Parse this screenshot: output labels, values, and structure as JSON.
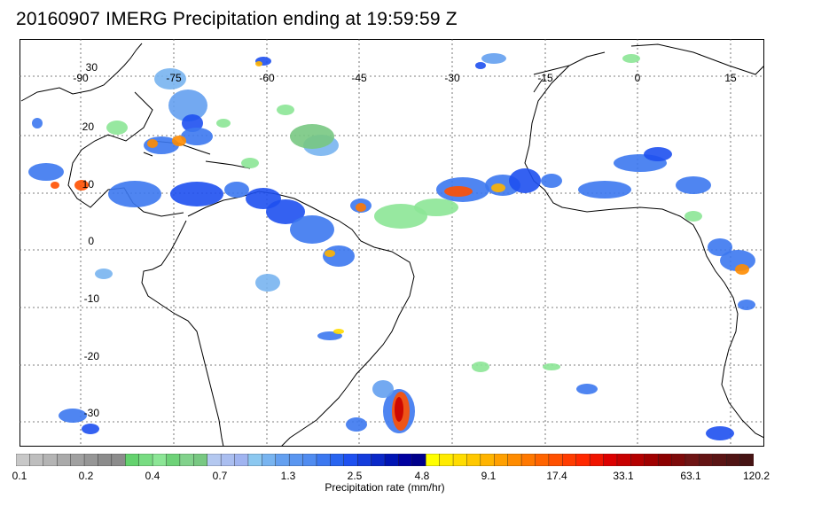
{
  "title": "20160907 IMERG Precipitation ending at 19:59:59 Z",
  "map": {
    "lon_labels": [
      "-90",
      "-75",
      "-60",
      "-45",
      "-30",
      "-15",
      "0",
      "15"
    ],
    "lat_labels": [
      "30",
      "20",
      "10",
      "0",
      "-10",
      "-20",
      "-30"
    ]
  },
  "colorbar": {
    "title": "Precipitation rate (mm/hr)",
    "tick_labels": [
      "0.1",
      "0.2",
      "0.4",
      "0.7",
      "1.3",
      "2.5",
      "4.8",
      "9.1",
      "17.4",
      "33.1",
      "63.1",
      "120.2"
    ],
    "colors": [
      "#c8c8c8",
      "#bebebe",
      "#b4b4b4",
      "#aaaaaa",
      "#a0a0a0",
      "#969696",
      "#8c8c8c",
      "#8c8c8c",
      "#64d26e",
      "#78dc82",
      "#8ce696",
      "#6ed278",
      "#82d28c",
      "#78c882",
      "#b4c8f0",
      "#aabef0",
      "#a0b4f0",
      "#8cc8f0",
      "#78b4f0",
      "#64a0f0",
      "#5a96f0",
      "#508cf0",
      "#3c78f0",
      "#2864f0",
      "#1e50f0",
      "#143cdc",
      "#0a28c8",
      "#0014b4",
      "#0000a0",
      "#00008c",
      "#ffff00",
      "#ffeb00",
      "#ffdc00",
      "#ffc800",
      "#ffb400",
      "#ffa000",
      "#ff8c00",
      "#ff7800",
      "#ff6400",
      "#ff5000",
      "#ff3c00",
      "#ff2800",
      "#f01400",
      "#dc0000",
      "#c80000",
      "#b40000",
      "#a00000",
      "#8c0000",
      "#7d0a0a",
      "#6e1414",
      "#641414",
      "#5a1414",
      "#501414",
      "#461414"
    ]
  }
}
